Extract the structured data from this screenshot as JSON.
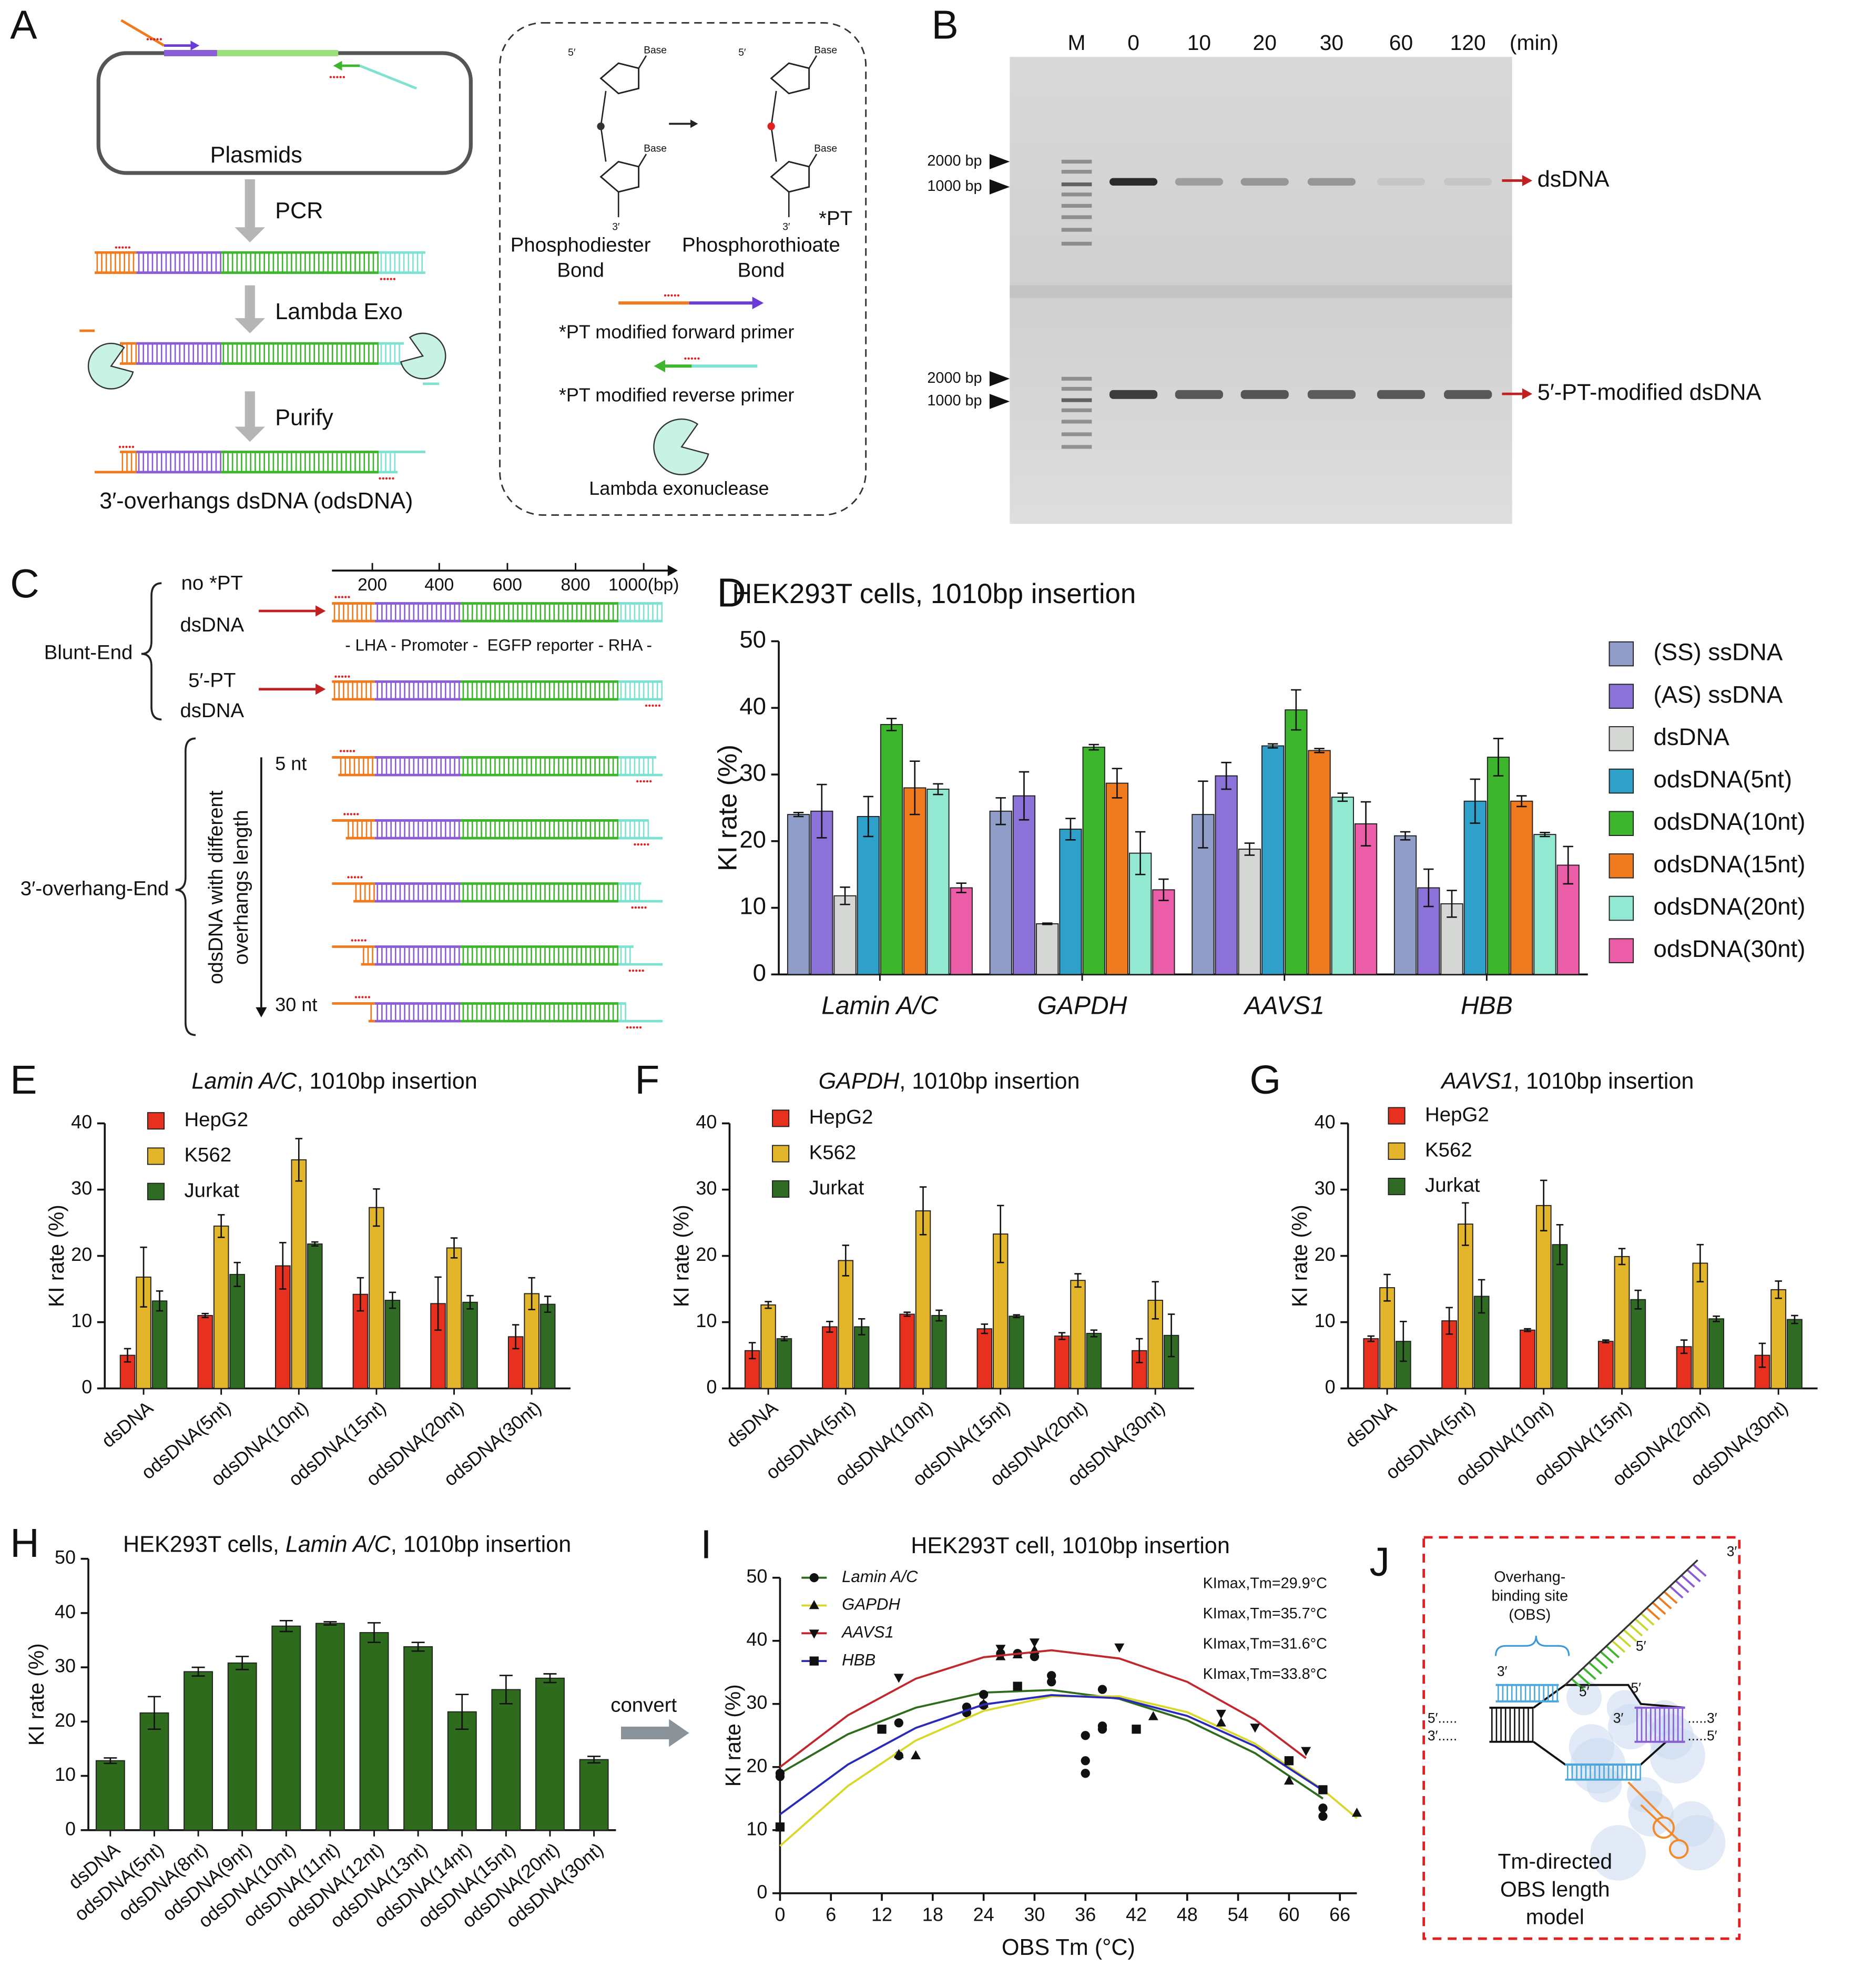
{
  "panel_a": {
    "label": "A",
    "plasmid": "Plasmids",
    "steps": [
      "PCR",
      "Lambda Exo",
      "Purify"
    ],
    "product": "3′-overhangs dsDNA (odsDNA)",
    "base": "Base",
    "five": "5′",
    "three": "3′",
    "diester": [
      "Phosphodiester",
      "Bond"
    ],
    "pt_mark": "*PT",
    "thioate": [
      "Phosphorothioate",
      "Bond"
    ],
    "fwd": "*PT modified forward primer",
    "rev": "*PT modified reverse primer",
    "exo": "Lambda exonuclease"
  },
  "panel_b": {
    "label": "B",
    "lanes": [
      "M",
      "0",
      "10",
      "20",
      "30",
      "60",
      "120"
    ],
    "unit": "(min)",
    "markers": [
      "2000 bp",
      "1000 bp"
    ],
    "bands": [
      "dsDNA",
      "5′-PT-modified dsDNA"
    ]
  },
  "panel_c": {
    "label": "C",
    "scale": [
      "200",
      "400",
      "600",
      "800",
      "1000(bp)"
    ],
    "row1": [
      "no *PT",
      "dsDNA"
    ],
    "row2": [
      "5′-PT",
      "dsDNA"
    ],
    "blunt": "Blunt-End",
    "parts": "- LHA - Promoter -  EGFP reporter - RHA -",
    "overhang_end": "3′-overhang-End",
    "variants": [
      "odsDNA with different",
      "overhangs length"
    ],
    "min": "5 nt",
    "max": "30 nt"
  },
  "panel_j": {
    "label": "J",
    "obs": [
      "Overhang-",
      "binding site",
      "(OBS)"
    ],
    "three": "3′",
    "five": "5′",
    "dots5": "5′.....",
    "dots3": "3′.....",
    "dots5r": ".....3′",
    "dots3r": ".....5′",
    "model": [
      "Tm-directed",
      "OBS length",
      "model"
    ]
  },
  "convert": "convert",
  "chart_data": [
    {
      "type": "bar",
      "panel": "D",
      "title": [
        {
          "text": "HEK293T cells, 1010bp insertion"
        }
      ],
      "y_label": "KI rate (%)",
      "categories": [
        "Lamin A/C",
        "GAPDH",
        "AAVS1",
        "HBB"
      ],
      "category_italic": true,
      "ylim": [
        0,
        50
      ],
      "yticks": [
        0,
        10,
        20,
        30,
        40,
        50
      ],
      "grid": false,
      "legend": "right",
      "series": [
        {
          "name": "(SS) ssDNA",
          "color": "#8f9dc8",
          "values": [
            24,
            24.5,
            24,
            20.8
          ],
          "errors": [
            0.3,
            2,
            5,
            0.6
          ]
        },
        {
          "name": "(AS) ssDNA",
          "color": "#8a72d8",
          "values": [
            24.5,
            26.8,
            29.8,
            13
          ],
          "errors": [
            4,
            3.6,
            2,
            2.8
          ]
        },
        {
          "name": "dsDNA",
          "color": "#d4d7d4",
          "values": [
            11.8,
            7.6,
            18.8,
            10.6
          ],
          "errors": [
            1.3,
            0.1,
            0.9,
            2
          ]
        },
        {
          "name": "odsDNA(5nt)",
          "color": "#2fa0c9",
          "values": [
            23.7,
            21.8,
            34.3,
            26
          ],
          "errors": [
            3,
            1.6,
            0.3,
            3.3
          ]
        },
        {
          "name": "odsDNA(10nt)",
          "color": "#3db52c",
          "values": [
            37.5,
            34.1,
            39.7,
            32.6
          ],
          "errors": [
            0.9,
            0.4,
            3,
            2.8
          ]
        },
        {
          "name": "odsDNA(15nt)",
          "color": "#f07b1f",
          "values": [
            28,
            28.7,
            33.6,
            26
          ],
          "errors": [
            4,
            2.2,
            0.3,
            0.8
          ]
        },
        {
          "name": "odsDNA(20nt)",
          "color": "#92e8d0",
          "values": [
            27.8,
            18.2,
            26.6,
            21
          ],
          "errors": [
            0.8,
            3.2,
            0.6,
            0.3
          ]
        },
        {
          "name": "odsDNA(30nt)",
          "color": "#ec5da8",
          "values": [
            13,
            12.7,
            22.6,
            16.4
          ],
          "errors": [
            0.7,
            1.6,
            3.3,
            2.8
          ]
        }
      ]
    },
    {
      "type": "bar",
      "panel": "E",
      "title": [
        {
          "text": "Lamin A/C",
          "italic": true
        },
        {
          "text": ", 1010bp insertion"
        }
      ],
      "y_label": "KI rate (%)",
      "categories": [
        "dsDNA",
        "odsDNA(5nt)",
        "odsDNA(10nt)",
        "odsDNA(15nt)",
        "odsDNA(20nt)",
        "odsDNA(30nt)"
      ],
      "ylim": [
        0,
        40
      ],
      "yticks": [
        0,
        10,
        20,
        30,
        40
      ],
      "grid": false,
      "legend": "top-left",
      "series": [
        {
          "name": "HepG2",
          "color": "#e8301e",
          "values": [
            5,
            11,
            18.5,
            14.2,
            12.8,
            7.8
          ],
          "errors": [
            1,
            0.3,
            3.5,
            2.5,
            4,
            1.8
          ]
        },
        {
          "name": "K562",
          "color": "#e3b52a",
          "values": [
            16.8,
            24.5,
            34.5,
            27.3,
            21.2,
            14.3
          ],
          "errors": [
            4.5,
            1.7,
            3.2,
            2.8,
            1.5,
            2.4
          ]
        },
        {
          "name": "Jurkat",
          "color": "#2f6b22",
          "values": [
            13.2,
            17.2,
            21.8,
            13.3,
            13,
            12.7
          ],
          "errors": [
            1.5,
            1.8,
            0.3,
            1.2,
            1,
            1.2
          ]
        }
      ]
    },
    {
      "type": "bar",
      "panel": "F",
      "title": [
        {
          "text": "GAPDH",
          "italic": true
        },
        {
          "text": ", 1010bp insertion"
        }
      ],
      "y_label": "KI rate (%)",
      "categories": [
        "dsDNA",
        "odsDNA(5nt)",
        "odsDNA(10nt)",
        "odsDNA(15nt)",
        "odsDNA(20nt)",
        "odsDNA(30nt)"
      ],
      "ylim": [
        0,
        40
      ],
      "yticks": [
        0,
        10,
        20,
        30,
        40
      ],
      "grid": false,
      "legend": "top-left",
      "series": [
        {
          "name": "HepG2",
          "color": "#e8301e",
          "values": [
            5.7,
            9.3,
            11.2,
            9,
            7.9,
            5.7
          ],
          "errors": [
            1.2,
            0.8,
            0.3,
            0.7,
            0.5,
            1.8
          ]
        },
        {
          "name": "K562",
          "color": "#e3b52a",
          "values": [
            12.6,
            19.3,
            26.8,
            23.3,
            16.3,
            13.3
          ],
          "errors": [
            0.5,
            2.3,
            3.6,
            4.3,
            1,
            2.8
          ]
        },
        {
          "name": "Jurkat",
          "color": "#2f6b22",
          "values": [
            7.5,
            9.3,
            11,
            10.9,
            8.3,
            8
          ],
          "errors": [
            0.3,
            1.2,
            0.8,
            0.2,
            0.5,
            3.2
          ]
        }
      ]
    },
    {
      "type": "bar",
      "panel": "G",
      "title": [
        {
          "text": "AAVS1",
          "italic": true
        },
        {
          "text": ", 1010bp insertion"
        }
      ],
      "y_label": "KI rate (%)",
      "categories": [
        "dsDNA",
        "odsDNA(5nt)",
        "odsDNA(10nt)",
        "odsDNA(15nt)",
        "odsDNA(20nt)",
        "odsDNA(30nt)"
      ],
      "ylim": [
        0,
        40
      ],
      "yticks": [
        0,
        10,
        20,
        30,
        40
      ],
      "grid": false,
      "legend": "top-left",
      "series": [
        {
          "name": "HepG2",
          "color": "#e8301e",
          "values": [
            7.5,
            10.2,
            8.8,
            7.1,
            6.3,
            5
          ],
          "errors": [
            0.4,
            2,
            0.2,
            0.2,
            1,
            1.8
          ]
        },
        {
          "name": "K562",
          "color": "#e3b52a",
          "values": [
            15.2,
            24.8,
            27.6,
            19.9,
            18.9,
            14.9
          ],
          "errors": [
            2,
            3.2,
            3.8,
            1.2,
            2.8,
            1.3
          ]
        },
        {
          "name": "Jurkat",
          "color": "#2f6b22",
          "values": [
            7.1,
            13.9,
            21.7,
            13.4,
            10.5,
            10.4
          ],
          "errors": [
            3,
            2.5,
            3,
            1.4,
            0.4,
            0.6
          ]
        }
      ]
    },
    {
      "type": "bar",
      "panel": "H",
      "title": [
        {
          "text": "HEK293T cells, "
        },
        {
          "text": "Lamin A/C",
          "italic": true
        },
        {
          "text": ", 1010bp insertion"
        }
      ],
      "y_label": "KI rate (%)",
      "categories": [
        "dsDNA",
        "odsDNA(5nt)",
        "odsDNA(8nt)",
        "odsDNA(9nt)",
        "odsDNA(10nt)",
        "odsDNA(11nt)",
        "odsDNA(12nt)",
        "odsDNA(13nt)",
        "odsDNA(14nt)",
        "odsDNA(15nt)",
        "odsDNA(20nt)",
        "odsDNA(30nt)"
      ],
      "ylim": [
        0,
        50
      ],
      "yticks": [
        0,
        10,
        20,
        30,
        40,
        50
      ],
      "grid": false,
      "series": [
        {
          "color": "#2e6b1c",
          "values": [
            12.8,
            21.6,
            29.2,
            30.8,
            37.6,
            38.1,
            36.4,
            33.8,
            21.8,
            25.9,
            28,
            13
          ],
          "errors": [
            0.5,
            3,
            0.8,
            1.2,
            1,
            0.3,
            1.8,
            0.8,
            3.2,
            2.6,
            0.8,
            0.6
          ]
        }
      ]
    },
    {
      "type": "scatter",
      "panel": "I",
      "title": [
        {
          "text": "HEK293T cell, 1010bp insertion"
        }
      ],
      "y_label": "KI rate (%)",
      "x_label": "OBS Tm (°C)",
      "xlim": [
        0,
        68
      ],
      "xticks": [
        0,
        6,
        12,
        18,
        24,
        30,
        36,
        42,
        48,
        54,
        60,
        66
      ],
      "ylim": [
        0,
        50
      ],
      "yticks": [
        0,
        10,
        20,
        30,
        40,
        50
      ],
      "grid": false,
      "legend": "top-left",
      "series": [
        {
          "name": "Lamin A/C",
          "color": "#2e6b1c",
          "marker": "circle",
          "annotation": "KImax,Tm=29.9°C",
          "x": [
            0,
            0,
            14,
            14,
            22,
            22,
            24,
            24,
            26,
            28,
            30,
            32,
            32,
            36,
            36,
            36,
            38,
            38,
            38,
            64,
            64
          ],
          "values": [
            19,
            18.5,
            21.8,
            27,
            29.5,
            28.6,
            31.5,
            29.8,
            38,
            38,
            37.5,
            34.5,
            33.5,
            25,
            21,
            19,
            26,
            26.5,
            32.3,
            13.5,
            12.2
          ],
          "fit_x": [
            0,
            8,
            16,
            24,
            32,
            40,
            48,
            56,
            64
          ],
          "fit_y": [
            19,
            25.2,
            29.4,
            31.8,
            32.2,
            30.8,
            27.4,
            22.2,
            15
          ]
        },
        {
          "name": "GAPDH",
          "color": "#d8d82a",
          "marker": "triangle",
          "annotation": "KImax,Tm=35.7°C",
          "x": [
            14,
            16,
            24,
            26,
            28,
            30,
            44,
            52,
            60,
            68
          ],
          "values": [
            22,
            21.8,
            30,
            37.5,
            37.8,
            38.5,
            28,
            27,
            17.8,
            12.7
          ],
          "fit_x": [
            0,
            8,
            16,
            24,
            32,
            40,
            48,
            56,
            64,
            68
          ],
          "fit_y": [
            7.5,
            17,
            24.2,
            28.9,
            31.2,
            31.2,
            28.7,
            23.7,
            16.4,
            11.9
          ]
        },
        {
          "name": "AAVS1",
          "color": "#c0282d",
          "marker": "triangle-down",
          "annotation": "KImax,Tm=31.6°C",
          "x": [
            14,
            26,
            30,
            40,
            52,
            56,
            62
          ],
          "values": [
            34.2,
            38.8,
            39.8,
            39,
            28.5,
            26.3,
            22.6
          ],
          "fit_x": [
            0,
            8,
            16,
            24,
            32,
            40,
            48,
            56,
            62
          ],
          "fit_y": [
            20,
            28.2,
            34,
            37.4,
            38.5,
            37.2,
            33.5,
            27.5,
            21.4
          ]
        },
        {
          "name": "HBB",
          "color": "#2a2ab8",
          "marker": "square",
          "annotation": "KImax,Tm=33.8°C",
          "x": [
            0,
            12,
            28,
            42,
            60,
            64
          ],
          "values": [
            10.5,
            26,
            32.8,
            26,
            21,
            16.4
          ],
          "fit_x": [
            0,
            8,
            16,
            24,
            32,
            40,
            48,
            56,
            64
          ],
          "fit_y": [
            12.5,
            20.4,
            26.2,
            29.9,
            31.4,
            30.9,
            28.1,
            23.3,
            16.3
          ]
        }
      ]
    }
  ]
}
